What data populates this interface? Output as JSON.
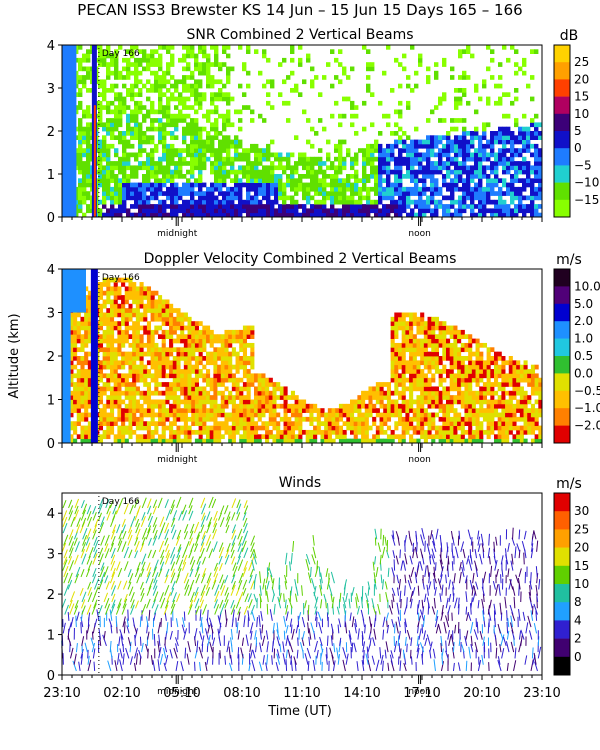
{
  "header": {
    "title": "PECAN ISS3 Brewster KS  14 Jun – 15 Jun 15 Days 165 – 166"
  },
  "chart_data": [
    {
      "id": "snr",
      "type": "heatmap",
      "title": "SNR Combined 2 Vertical Beams",
      "unit": "dB",
      "ylabel": "",
      "ylim": [
        0,
        4
      ],
      "yticks": [
        "0",
        "1",
        "2",
        "3",
        "4"
      ],
      "day_label": "Day 166",
      "markers": [
        "midnight",
        "noon"
      ],
      "legend_levels": [
        "25",
        "20",
        "15",
        "10",
        "5",
        "0",
        "−5",
        "−10",
        "−15"
      ],
      "legend_colors": [
        "#ffd200",
        "#ffa000",
        "#ff4000",
        "#b00060",
        "#3c0078",
        "#1010c8",
        "#1e7cff",
        "#20d0d0",
        "#60e000",
        "#88ff00"
      ]
    },
    {
      "id": "doppler",
      "type": "heatmap",
      "title": "Doppler Velocity Combined 2 Vertical Beams",
      "unit": "m/s",
      "ylabel": "Altitude (km)",
      "ylim": [
        0,
        4
      ],
      "yticks": [
        "0",
        "1",
        "2",
        "3",
        "4"
      ],
      "day_label": "Day 166",
      "markers": [
        "midnight",
        "noon"
      ],
      "legend_levels": [
        "10.0",
        "5.0",
        "2.0",
        "1.0",
        "0.5",
        "0.0",
        "−0.5",
        "−1.0",
        "−2.0"
      ],
      "legend_colors": [
        "#200020",
        "#500078",
        "#0000d0",
        "#1e90ff",
        "#20c8e0",
        "#30c030",
        "#e0e000",
        "#ffc000",
        "#ff8000",
        "#e00000"
      ]
    },
    {
      "id": "winds",
      "type": "scatter",
      "title": "Winds",
      "unit": "m/s",
      "xlabel": "Time (UT)",
      "ylim": [
        0,
        4.5
      ],
      "yticks": [
        "0",
        "1",
        "2",
        "3",
        "4"
      ],
      "xticks": [
        "23:10",
        "02:10",
        "05:10",
        "08:10",
        "11:10",
        "14:10",
        "17:10",
        "20:10",
        "23:10"
      ],
      "day_label": "Day 166",
      "markers": [
        "midnight",
        "noon"
      ],
      "legend_levels": [
        "30",
        "25",
        "20",
        "15",
        "10",
        "8",
        "4",
        "2",
        "0"
      ],
      "legend_colors": [
        "#e00000",
        "#ff6000",
        "#ffa000",
        "#e0e000",
        "#60d000",
        "#20c0a0",
        "#20a0ff",
        "#3020d0",
        "#400070",
        "#000000"
      ]
    }
  ]
}
